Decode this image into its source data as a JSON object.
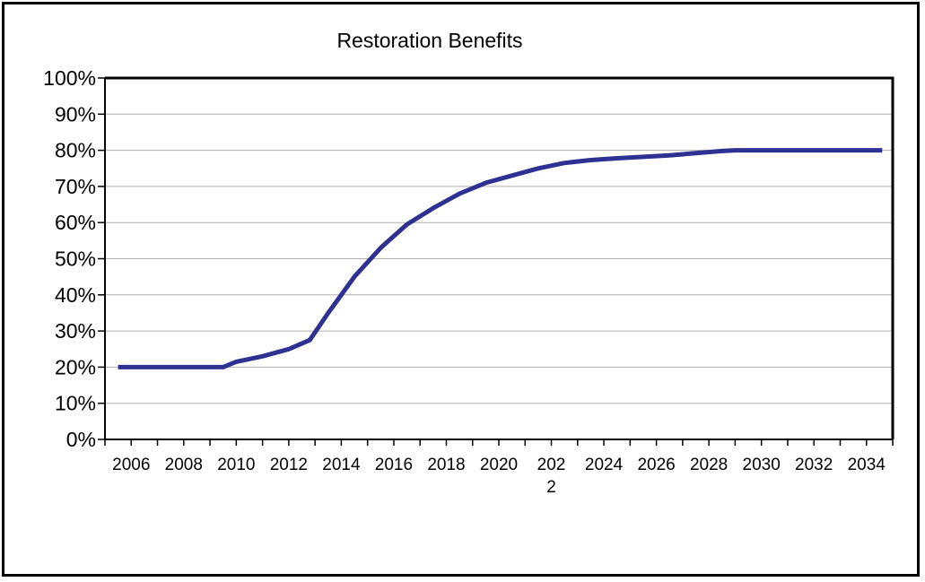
{
  "chart_data": {
    "type": "line",
    "title": "Restoration Benefits",
    "xlabel": "",
    "ylabel": "",
    "x_tick_labels": [
      "2006",
      "2008",
      "2010",
      "2012",
      "2014",
      "2016",
      "2018",
      "2020",
      "202\n2",
      "2024",
      "2026",
      "2028",
      "2030",
      "2032",
      "2034"
    ],
    "y_tick_labels": [
      "0%",
      "10%",
      "20%",
      "30%",
      "40%",
      "50%",
      "60%",
      "70%",
      "80%",
      "90%",
      "100%"
    ],
    "xlim": [
      2005,
      2035
    ],
    "ylim": [
      0,
      100
    ],
    "grid": true,
    "legend": "none",
    "series": [
      {
        "color": "#2E3192",
        "x": [
          2005.5,
          2006,
          2007,
          2008,
          2009,
          2009.5,
          2010,
          2011,
          2011.5,
          2012,
          2012.8,
          2013.5,
          2014.5,
          2015.5,
          2016.5,
          2017.5,
          2018.5,
          2019.5,
          2020.5,
          2021.5,
          2022.5,
          2023.5,
          2024.5,
          2025.5,
          2026.5,
          2027.5,
          2028.5,
          2029,
          2030,
          2031,
          2032,
          2033,
          2034,
          2034.6
        ],
        "y": [
          20,
          20,
          20,
          20,
          20,
          20,
          21.5,
          23,
          24,
          25,
          27.5,
          35,
          45,
          53,
          59.5,
          64,
          68,
          71,
          73,
          75,
          76.5,
          77.3,
          77.8,
          78.2,
          78.6,
          79.2,
          79.8,
          80,
          80,
          80,
          80,
          80,
          80,
          80
        ]
      }
    ],
    "colors": {
      "line": "#2E3192",
      "grid": "#b0b0b0",
      "axis": "#000000"
    }
  }
}
